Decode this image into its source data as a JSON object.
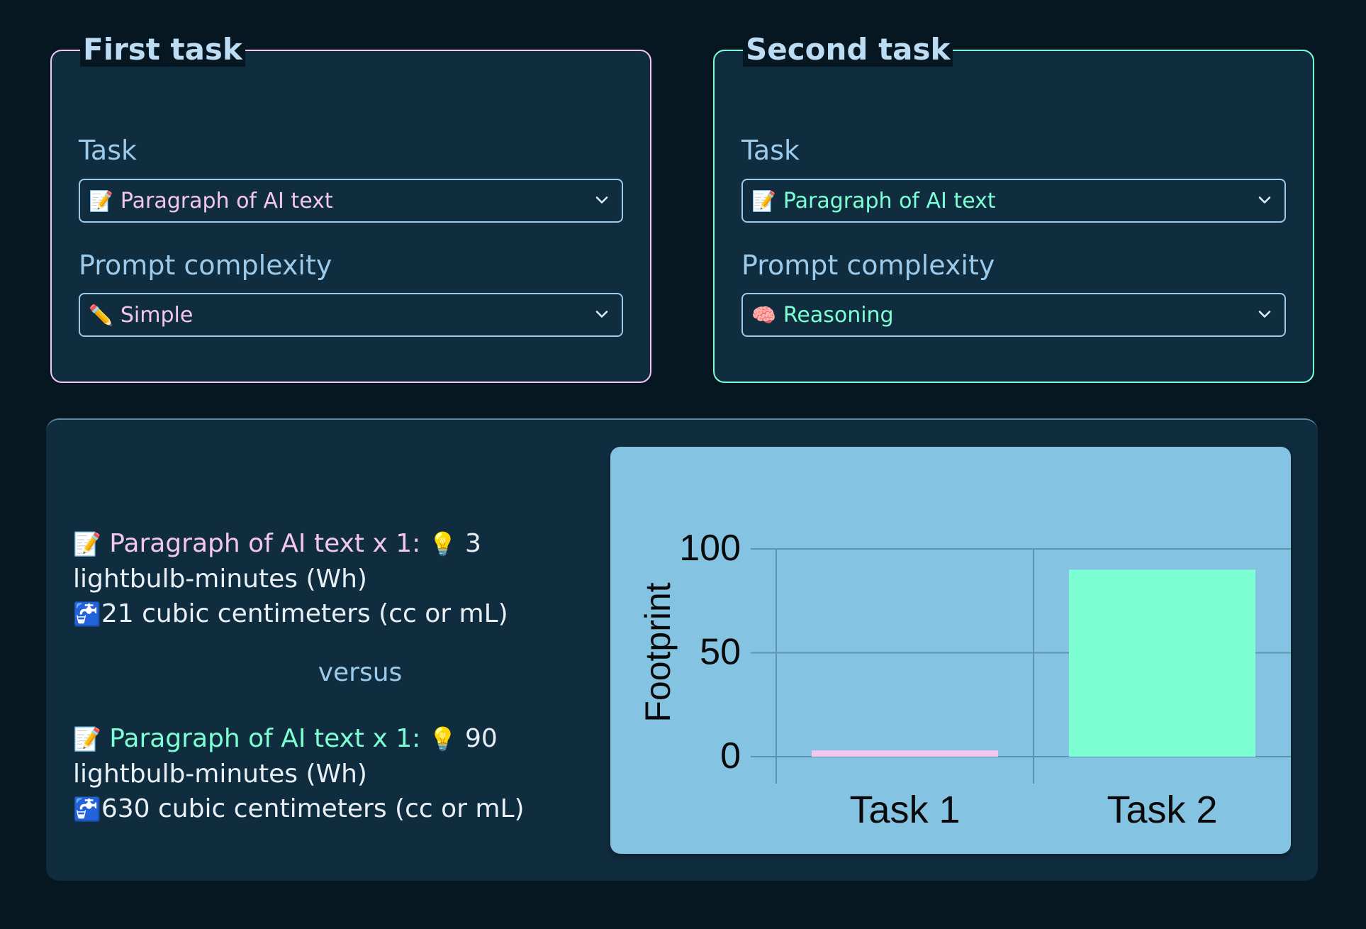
{
  "first_task": {
    "title": "First task",
    "task_label": "Task",
    "task_value": "Paragraph of AI text",
    "task_icon": "📝",
    "complexity_label": "Prompt complexity",
    "complexity_value": "Simple",
    "complexity_icon": "✏️",
    "accent": "#f3c6f0"
  },
  "second_task": {
    "title": "Second task",
    "task_label": "Task",
    "task_value": "Paragraph of AI text",
    "task_icon": "📝",
    "complexity_label": "Prompt complexity",
    "complexity_value": "Reasoning",
    "complexity_icon": "🧠",
    "accent": "#7dffd4"
  },
  "summary": {
    "task1": {
      "task_icon": "📝",
      "task_text": "Paragraph of AI text x 1:",
      "bulb_icon": "💡",
      "energy": "3",
      "energy_unit": "lightbulb-minutes (Wh)",
      "water_icon": "🚰",
      "water": "21 cubic centimeters (cc or mL)"
    },
    "versus": "versus",
    "task2": {
      "task_icon": "📝",
      "task_text": "Paragraph of AI text x 1:",
      "bulb_icon": "💡",
      "energy": "90",
      "energy_unit": "lightbulb-minutes (Wh)",
      "water_icon": "🚰",
      "water": "630 cubic centimeters (cc or mL)"
    }
  },
  "chart_data": {
    "type": "bar",
    "categories": [
      "Task 1",
      "Task 2"
    ],
    "values": [
      3,
      90
    ],
    "colors": [
      "#f3c6f0",
      "#7dffd4"
    ],
    "ylabel": "Footprint",
    "yticks": [
      0,
      50,
      100
    ],
    "ylim": [
      0,
      100
    ],
    "grid": true,
    "background": "#85c3e2"
  }
}
